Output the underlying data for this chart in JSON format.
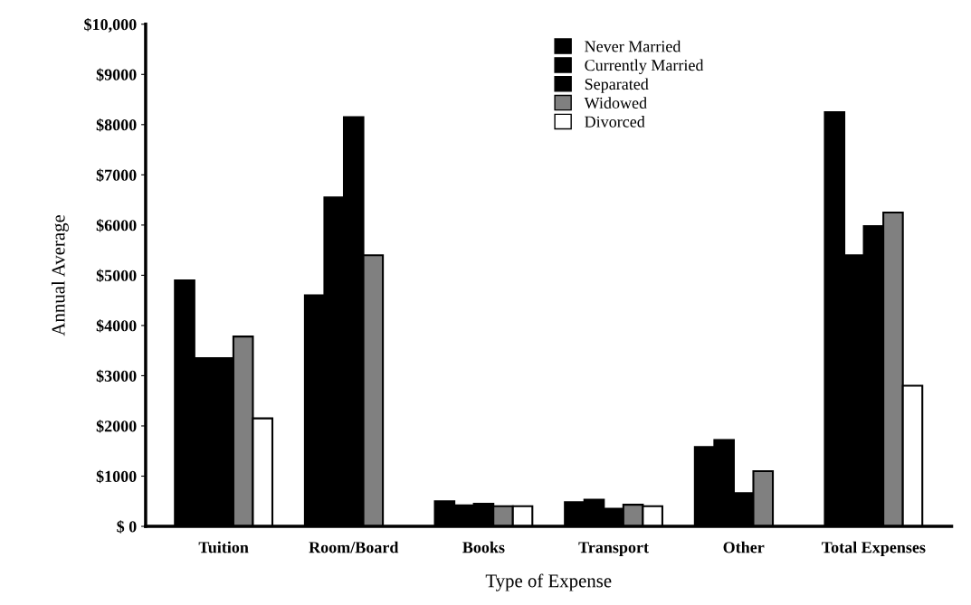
{
  "chart_data": {
    "type": "bar",
    "xlabel": "Type of Expense",
    "ylabel": "Annual Average",
    "categories": [
      "Tuition",
      "Room/Board",
      "Books",
      "Transport",
      "Other",
      "Total Expenses"
    ],
    "series": [
      {
        "name": "Never Married",
        "color": "#000000",
        "values": [
          4900,
          4600,
          500,
          480,
          1580,
          8250
        ]
      },
      {
        "name": "Currently Married",
        "color": "#000000",
        "values": [
          3350,
          6550,
          420,
          530,
          1720,
          5400
        ]
      },
      {
        "name": "Separated",
        "color": "#000000",
        "values": [
          3350,
          8150,
          450,
          350,
          660,
          5980
        ]
      },
      {
        "name": "Widowed",
        "color": "#808080",
        "values": [
          3780,
          5400,
          400,
          430,
          1100,
          6250
        ]
      },
      {
        "name": "Divorced",
        "color": "#ffffff",
        "values": [
          2150,
          null,
          400,
          400,
          null,
          2800
        ]
      }
    ],
    "ylim": [
      0,
      10000
    ],
    "yticks": [
      {
        "value": 0,
        "label": "$ 0"
      },
      {
        "value": 1000,
        "label": "$1000"
      },
      {
        "value": 2000,
        "label": "$2000"
      },
      {
        "value": 3000,
        "label": "$3000"
      },
      {
        "value": 4000,
        "label": "$4000"
      },
      {
        "value": 5000,
        "label": "$5000"
      },
      {
        "value": 6000,
        "label": "$6000"
      },
      {
        "value": 7000,
        "label": "$7000"
      },
      {
        "value": 8000,
        "label": "$8000"
      },
      {
        "value": 9000,
        "label": "$9000"
      },
      {
        "value": 10000,
        "label": "$10,000"
      }
    ],
    "grid": false,
    "legend": "top"
  }
}
